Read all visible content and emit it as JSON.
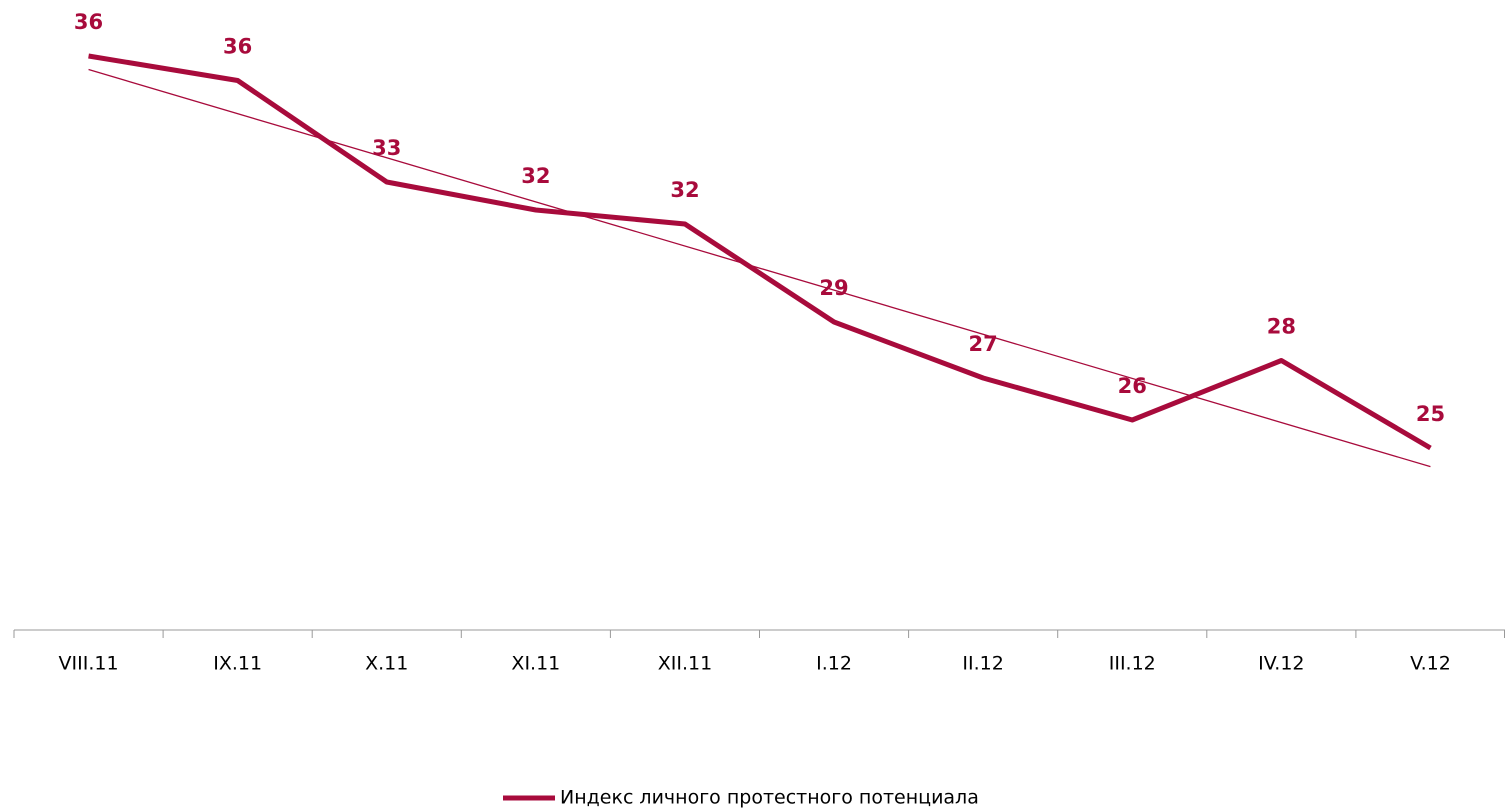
{
  "chart_data": {
    "type": "line",
    "categories": [
      "VIII.11",
      "IX.11",
      "X.11",
      "XI.11",
      "XII.11",
      "I.12",
      "II.12",
      "III.12",
      "IV.12",
      "V.12"
    ],
    "series": [
      {
        "name": "Индекс личного протестного потенциала",
        "color": "#a80b3c",
        "values": [
          36.4,
          35.7,
          32.8,
          32.0,
          31.6,
          28.8,
          27.2,
          26.0,
          27.7,
          25.2
        ],
        "value_labels": [
          "36",
          "36",
          "33",
          "32",
          "32",
          "29",
          "27",
          "26",
          "28",
          "25"
        ]
      }
    ],
    "ylim": [
      20,
      38
    ],
    "trendline": true,
    "legend": "bottom"
  }
}
